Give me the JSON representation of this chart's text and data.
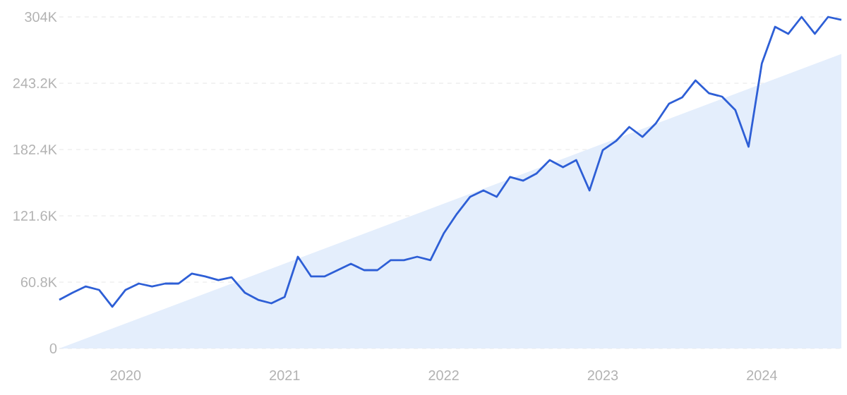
{
  "chart_data": {
    "type": "line",
    "x": [
      "2019-08",
      "2019-09",
      "2019-10",
      "2019-11",
      "2019-12",
      "2020-01",
      "2020-02",
      "2020-03",
      "2020-04",
      "2020-05",
      "2020-06",
      "2020-07",
      "2020-08",
      "2020-09",
      "2020-10",
      "2020-11",
      "2020-12",
      "2021-01",
      "2021-02",
      "2021-03",
      "2021-04",
      "2021-05",
      "2021-06",
      "2021-07",
      "2021-08",
      "2021-09",
      "2021-10",
      "2021-11",
      "2021-12",
      "2022-01",
      "2022-02",
      "2022-03",
      "2022-04",
      "2022-05",
      "2022-06",
      "2022-07",
      "2022-08",
      "2022-09",
      "2022-10",
      "2022-11",
      "2022-12",
      "2023-01",
      "2023-02",
      "2023-03",
      "2023-04",
      "2023-05",
      "2023-06",
      "2023-07",
      "2023-08",
      "2023-09",
      "2023-10",
      "2023-11",
      "2023-12",
      "2024-01",
      "2024-02",
      "2024-03",
      "2024-04",
      "2024-05",
      "2024-06",
      "2024-07"
    ],
    "series": [
      {
        "type": "area",
        "color": "#e4eefc",
        "x": [
          "2019-08",
          "2024-07"
        ],
        "values": [
          0,
          270000
        ]
      },
      {
        "color": "#2e5fd6",
        "values": [
          44600,
          51100,
          56900,
          53700,
          38200,
          53700,
          59500,
          56900,
          59500,
          59500,
          68600,
          66000,
          62700,
          65300,
          51100,
          44600,
          41400,
          47200,
          84100,
          66000,
          66000,
          71800,
          77600,
          71800,
          71800,
          80900,
          80900,
          84100,
          80900,
          105400,
          123500,
          139100,
          144900,
          139100,
          157200,
          153900,
          160400,
          172700,
          166200,
          172700,
          144900,
          181800,
          190200,
          203100,
          194000,
          206300,
          224400,
          230300,
          245800,
          234100,
          230900,
          218600,
          185000,
          261300,
          294900,
          288500,
          304000,
          288500,
          304000,
          301400
        ]
      }
    ],
    "xlim": [
      "2019-08",
      "2024-07"
    ],
    "xticks": [
      {
        "value": "2020-01",
        "label": "2020"
      },
      {
        "value": "2021-01",
        "label": "2021"
      },
      {
        "value": "2022-01",
        "label": "2022"
      },
      {
        "value": "2023-01",
        "label": "2023"
      },
      {
        "value": "2024-01",
        "label": "2024"
      }
    ],
    "ylim": [
      0,
      304000
    ],
    "yticks": [
      {
        "value": 0,
        "label": "0"
      },
      {
        "value": 60800,
        "label": "60.8K"
      },
      {
        "value": 121600,
        "label": "121.6K"
      },
      {
        "value": 182400,
        "label": "182.4K"
      },
      {
        "value": 243200,
        "label": "243.2K"
      },
      {
        "value": 304000,
        "label": "304K"
      }
    ],
    "grid": "y",
    "marker": "none",
    "line_style": "solid"
  }
}
